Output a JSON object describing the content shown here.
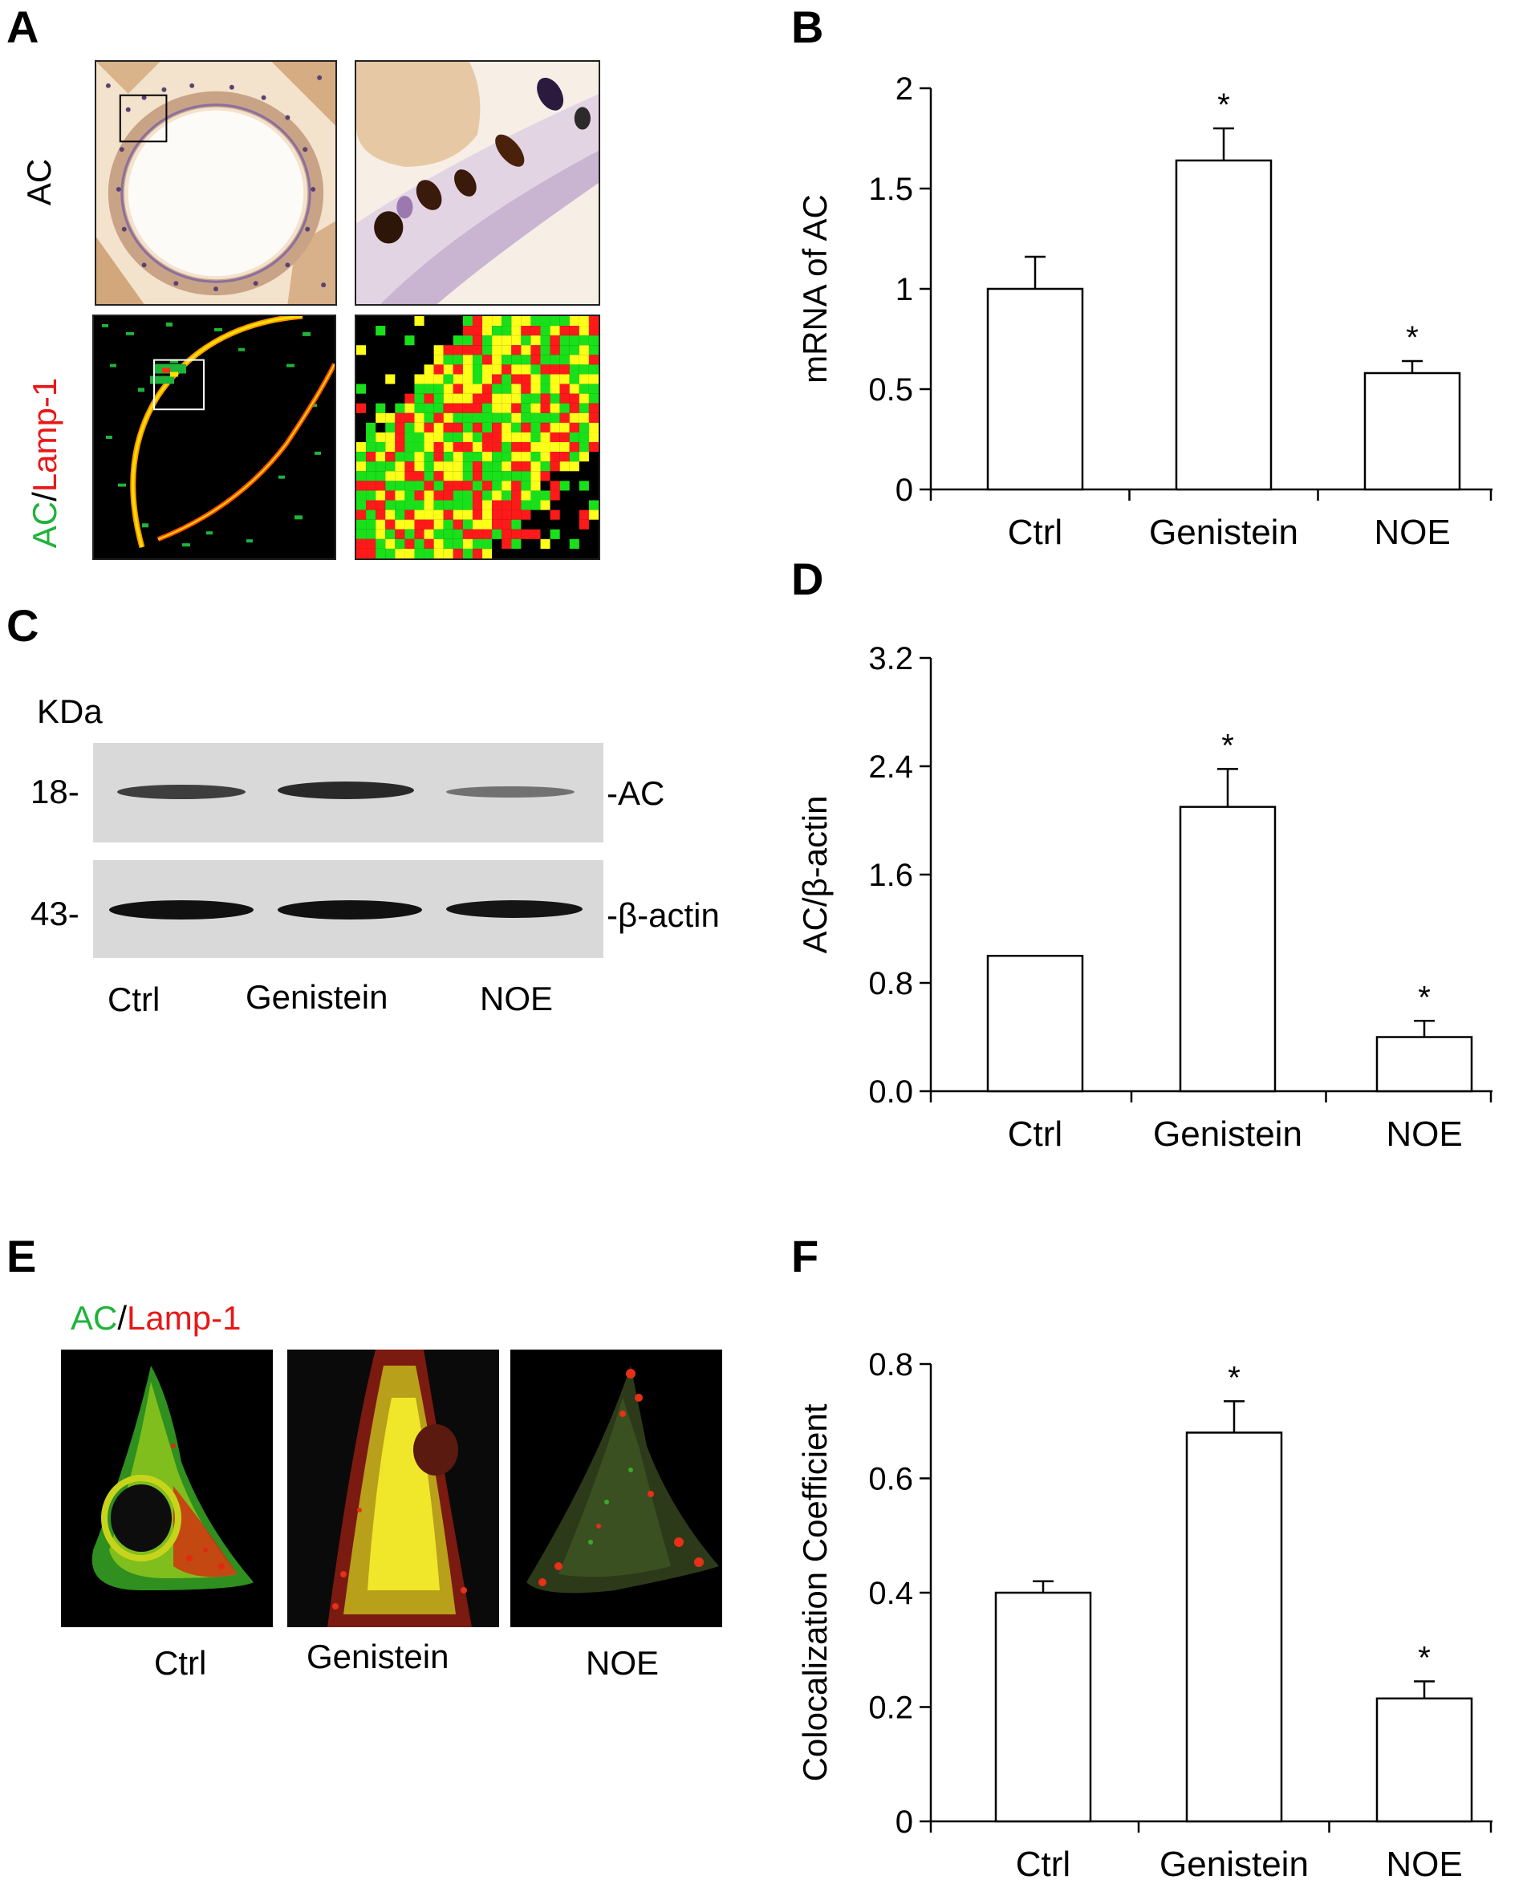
{
  "panels": {
    "A": {
      "letter": "A",
      "row_labels": [
        "AC",
        "AC",
        "/",
        "Lamp-1"
      ],
      "colors": {
        "green": "#1fb33a",
        "red": "#e81818"
      }
    },
    "B": {
      "letter": "B"
    },
    "C": {
      "letter": "C",
      "kda_label": "KDa",
      "markers": [
        "18-",
        "43-"
      ],
      "band_labels": [
        "-AC",
        "-β-actin"
      ],
      "lanes": [
        "Ctrl",
        "Genistein",
        "NOE"
      ]
    },
    "D": {
      "letter": "D"
    },
    "E": {
      "letter": "E",
      "legend": [
        "AC",
        "/",
        "Lamp-1"
      ],
      "captions": [
        "Ctrl",
        "Genistein",
        "NOE"
      ]
    },
    "F": {
      "letter": "F"
    }
  },
  "chart_data": [
    {
      "id": "B",
      "type": "bar",
      "categories": [
        "Ctrl",
        "Genistein",
        "NOE"
      ],
      "values": [
        1.0,
        1.64,
        0.58
      ],
      "errors": [
        0.16,
        0.16,
        0.06
      ],
      "significance": [
        "",
        "*",
        "*"
      ],
      "ylabel": "mRNA of AC",
      "ylim": [
        0,
        2
      ],
      "yticks": [
        0,
        0.5,
        1,
        1.5,
        2
      ],
      "ytick_labels": [
        "0",
        "0.5",
        "1",
        "1.5",
        "2"
      ]
    },
    {
      "id": "D",
      "type": "bar",
      "categories": [
        "Ctrl",
        "Genistein",
        "NOE"
      ],
      "values": [
        1.0,
        2.1,
        0.4
      ],
      "errors": [
        0.0,
        0.28,
        0.12
      ],
      "significance": [
        "",
        "*",
        "*"
      ],
      "ylabel": "AC/β-actin",
      "ylim": [
        0,
        3.2
      ],
      "yticks": [
        0,
        0.8,
        1.6,
        2.4,
        3.2
      ],
      "ytick_labels": [
        "0.0",
        "0.8",
        "1.6",
        "2.4",
        "3.2"
      ]
    },
    {
      "id": "F",
      "type": "bar",
      "categories": [
        "Ctrl",
        "Genistein",
        "NOE"
      ],
      "values": [
        0.4,
        0.68,
        0.215
      ],
      "errors": [
        0.02,
        0.055,
        0.03
      ],
      "significance": [
        "",
        "*",
        "*"
      ],
      "ylabel": "Colocalization Coefficient",
      "ylim": [
        0,
        0.8
      ],
      "yticks": [
        0,
        0.2,
        0.4,
        0.6,
        0.8
      ],
      "ytick_labels": [
        "0",
        "0.2",
        "0.4",
        "0.6",
        "0.8"
      ]
    }
  ]
}
